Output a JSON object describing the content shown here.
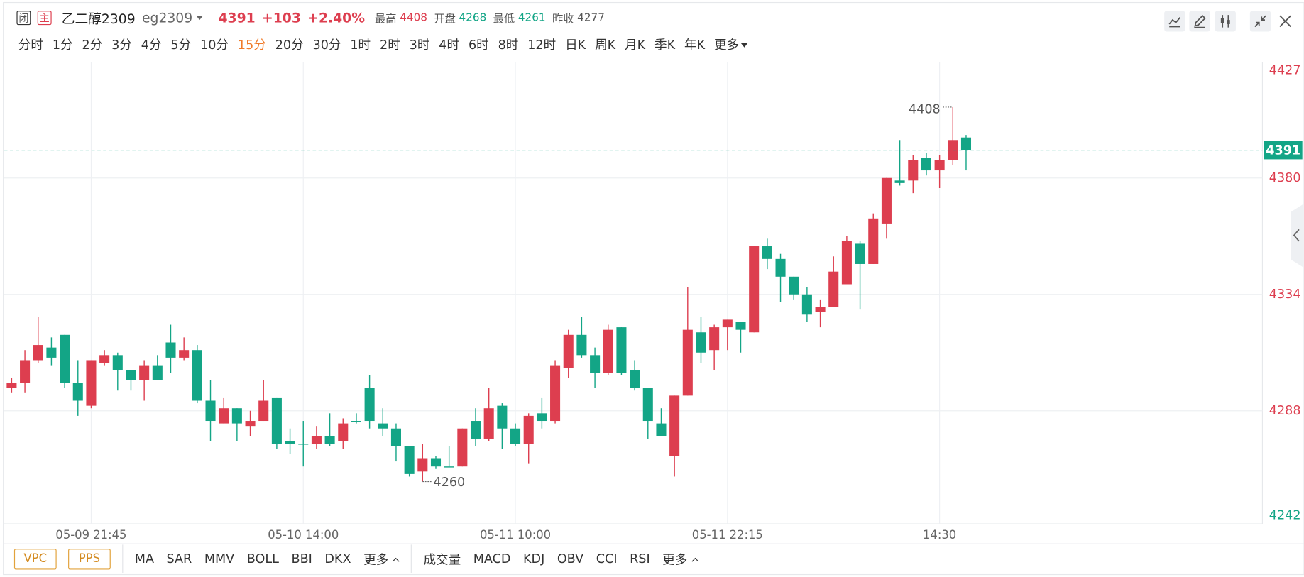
{
  "header": {
    "status": "闭",
    "main": "主",
    "name": "乙二醇2309",
    "code": "eg2309",
    "price": 4391,
    "change": "+103",
    "change_pct": "+2.40%",
    "stats": [
      {
        "label": "最高",
        "value": 4408
      },
      {
        "label": "开盘",
        "value": 4268
      },
      {
        "label": "最低",
        "value": 4261
      },
      {
        "label": "昨收",
        "value": 4277
      }
    ]
  },
  "intervals": [
    "分时",
    "1分",
    "2分",
    "3分",
    "4分",
    "5分",
    "10分",
    "15分",
    "20分",
    "30分",
    "1时",
    "2时",
    "3时",
    "4时",
    "6时",
    "8时",
    "12时",
    "日K",
    "周K",
    "月K",
    "季K",
    "年K",
    "更多"
  ],
  "active_interval": 7,
  "indicator_buttons": [
    "VPC",
    "PPS"
  ],
  "main_indicators": [
    "MA",
    "SAR",
    "MMV",
    "BOLL",
    "BBI",
    "DKX",
    "更多"
  ],
  "sub_indicators": [
    "成交量",
    "MACD",
    "KDJ",
    "OBV",
    "CCI",
    "RSI",
    "更多"
  ],
  "chart_data": {
    "type": "candlestick",
    "categories": [
      null,
      null,
      null,
      null,
      null,
      null,
      "05-09 21:45",
      null,
      null,
      null,
      null,
      null,
      null,
      null,
      null,
      null,
      null,
      null,
      null,
      null,
      null,
      null,
      "05-10 14:00",
      null,
      null,
      null,
      null,
      null,
      null,
      null,
      null,
      null,
      null,
      null,
      null,
      null,
      null,
      null,
      "05-11 10:00",
      null,
      null,
      null,
      null,
      null,
      null,
      null,
      null,
      null,
      null,
      null,
      null,
      null,
      null,
      null,
      "05-11 22:15",
      null,
      null,
      null,
      null,
      null,
      null,
      null,
      null,
      null,
      null,
      null,
      null,
      null,
      null,
      null,
      "14:30",
      null,
      null
    ],
    "open": [
      4297,
      4299,
      4308,
      4313,
      4318,
      4299,
      4290,
      4307,
      4310,
      4304,
      4300,
      4306,
      4315,
      4309,
      4312,
      4292,
      4283,
      4289,
      4282,
      4284,
      4293,
      4276,
      4275,
      4275,
      4278,
      4276,
      4284,
      4297,
      4283,
      4281,
      4274,
      4264,
      4269,
      4266,
      4266,
      4284,
      4277,
      4290,
      4281,
      4275,
      4287,
      4284,
      4305,
      4318,
      4310,
      4303,
      4321,
      4304,
      4297,
      4283,
      4270,
      4294,
      4319,
      4312,
      4321,
      4323,
      4319,
      4353,
      4348,
      4341,
      4334,
      4327,
      4329,
      4338,
      4354,
      4346,
      4362,
      4379,
      4379,
      4388,
      4383,
      4387,
      4396
    ],
    "high": [
      4301,
      4312,
      4325,
      4317,
      4318,
      4308,
      4308,
      4312,
      4311,
      4304,
      4308,
      4310,
      4322,
      4317,
      4314,
      4300,
      4293,
      4289,
      4288,
      4300,
      4293,
      4281,
      4284,
      4282,
      4287,
      4285,
      4287,
      4302,
      4289,
      4283,
      4274,
      4275,
      4270,
      4274,
      4281,
      4289,
      4297,
      4291,
      4283,
      4287,
      4293,
      4308,
      4320,
      4325,
      4313,
      4322,
      4321,
      4308,
      4297,
      4289,
      4294,
      4337,
      4325,
      4322,
      4324,
      4323,
      4353,
      4356,
      4350,
      4341,
      4337,
      4332,
      4349,
      4357,
      4355,
      4366,
      4380,
      4395,
      4389,
      4390,
      4389,
      4408,
      4397
    ],
    "low": [
      4295,
      4295,
      4307,
      4306,
      4297,
      4286,
      4289,
      4306,
      4296,
      4296,
      4292,
      4300,
      4303,
      4308,
      4291,
      4276,
      4283,
      4276,
      4278,
      4284,
      4273,
      4271,
      4266,
      4273,
      4274,
      4273,
      4283,
      4281,
      4278,
      4268,
      4262,
      4260,
      4265,
      4266,
      4266,
      4274,
      4276,
      4273,
      4274,
      4267,
      4281,
      4283,
      4301,
      4309,
      4297,
      4302,
      4302,
      4296,
      4277,
      4278,
      4262,
      4294,
      4307,
      4304,
      4312,
      4311,
      4319,
      4344,
      4331,
      4332,
      4323,
      4321,
      4329,
      4338,
      4328,
      4346,
      4356,
      4377,
      4374,
      4381,
      4376,
      4385,
      4383
    ],
    "close": [
      4299,
      4308,
      4314,
      4309,
      4299,
      4292,
      4308,
      4310,
      4304,
      4300,
      4306,
      4300,
      4309,
      4312,
      4292,
      4284,
      4289,
      4283,
      4284,
      4292,
      4275,
      4275,
      4275,
      4278,
      4275,
      4283,
      4284,
      4284,
      4281,
      4274,
      4263,
      4269,
      4266,
      4266,
      4281,
      4277,
      4289,
      4281,
      4275,
      4286,
      4284,
      4306,
      4318,
      4310,
      4303,
      4320,
      4303,
      4297,
      4284,
      4278,
      4294,
      4320,
      4311,
      4321,
      4324,
      4320,
      4353,
      4348,
      4341,
      4334,
      4326,
      4329,
      4343,
      4355,
      4346,
      4364,
      4380,
      4378,
      4387,
      4383,
      4387,
      4395,
      4391
    ],
    "ylim": [
      4242,
      4427
    ],
    "yticks": [
      4242,
      4288,
      4334,
      4380,
      4427
    ],
    "grid": true,
    "up_color": "#dd3e4f",
    "down_color": "#13a586"
  }
}
